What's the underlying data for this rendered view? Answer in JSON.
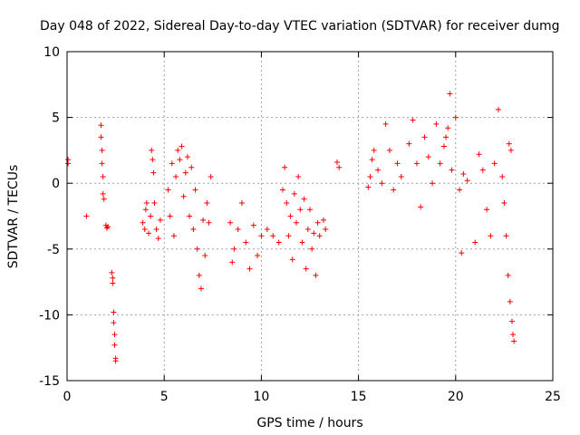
{
  "chart_data": {
    "type": "scatter",
    "title": "Day 048 of 2022, Sidereal Day-to-day VTEC variation (SDTVAR) for receiver dumg",
    "xlabel": "GPS time / hours",
    "ylabel": "SDTVAR / TECUs",
    "xlim": [
      0,
      25
    ],
    "ylim": [
      -15,
      10
    ],
    "xticks": [
      0,
      5,
      10,
      15,
      20,
      25
    ],
    "yticks": [
      -15,
      -10,
      -5,
      0,
      5,
      10
    ],
    "grid": true,
    "marker": "+",
    "color": "#ff0000",
    "series": [
      {
        "name": "SDTVAR",
        "x": [
          0.05,
          0.05,
          1.0,
          1.75,
          1.75,
          1.8,
          1.8,
          1.85,
          1.85,
          1.9,
          2.0,
          2.05,
          2.1,
          2.3,
          2.35,
          2.35,
          2.4,
          2.4,
          2.45,
          2.45,
          2.5,
          2.5,
          3.9,
          4.0,
          4.05,
          4.1,
          4.2,
          4.3,
          4.35,
          4.4,
          4.45,
          4.5,
          4.6,
          4.7,
          4.8,
          5.2,
          5.3,
          5.4,
          5.5,
          5.6,
          5.7,
          5.8,
          5.9,
          6.0,
          6.1,
          6.2,
          6.3,
          6.4,
          6.5,
          6.6,
          6.7,
          6.8,
          6.9,
          7.0,
          7.1,
          7.2,
          7.3,
          7.4,
          8.4,
          8.5,
          8.6,
          8.8,
          9.0,
          9.2,
          9.4,
          9.6,
          9.8,
          10.0,
          10.3,
          10.6,
          10.9,
          11.1,
          11.2,
          11.3,
          11.4,
          11.5,
          11.6,
          11.7,
          11.8,
          11.9,
          12.0,
          12.1,
          12.2,
          12.3,
          12.4,
          12.5,
          12.6,
          12.7,
          12.8,
          12.9,
          13.0,
          13.2,
          13.3,
          13.9,
          14.0,
          15.5,
          15.6,
          15.7,
          15.8,
          16.0,
          16.2,
          16.4,
          16.6,
          16.8,
          17.0,
          17.2,
          17.6,
          17.8,
          18.0,
          18.2,
          18.4,
          18.6,
          18.8,
          19.0,
          19.2,
          19.4,
          19.5,
          19.6,
          19.7,
          19.8,
          20.0,
          20.2,
          20.3,
          20.4,
          20.6,
          21.0,
          21.2,
          21.4,
          21.6,
          21.8,
          22.0,
          22.2,
          22.4,
          22.5,
          22.6,
          22.7,
          22.75,
          22.8,
          22.85,
          22.9,
          22.95,
          23.0
        ],
        "y": [
          1.8,
          1.5,
          -2.5,
          4.4,
          3.5,
          2.5,
          1.5,
          0.5,
          -0.8,
          -1.2,
          -3.2,
          -3.4,
          -3.3,
          -6.8,
          -7.2,
          -7.6,
          -9.8,
          -10.6,
          -11.5,
          -12.3,
          -13.3,
          -13.5,
          -3.0,
          -3.5,
          -2.0,
          -1.5,
          -3.8,
          -2.5,
          2.5,
          1.8,
          0.8,
          -1.5,
          -3.5,
          -4.2,
          -2.8,
          -0.5,
          -2.5,
          1.5,
          -4.0,
          0.5,
          2.5,
          1.8,
          2.8,
          -1.0,
          0.8,
          2.0,
          -2.5,
          1.2,
          -3.5,
          -0.5,
          -5.0,
          -7.0,
          -8.0,
          -2.8,
          -5.5,
          -1.5,
          -3.0,
          0.5,
          -3.0,
          -6.0,
          -5.0,
          -3.5,
          -1.5,
          -4.5,
          -6.5,
          -3.2,
          -5.5,
          -4.0,
          -3.5,
          -4.0,
          -4.5,
          -0.5,
          1.2,
          -1.5,
          -4.0,
          -2.5,
          -5.8,
          -0.8,
          -3.0,
          0.5,
          -2.0,
          -4.5,
          -1.2,
          -6.5,
          -3.5,
          -2.0,
          -5.0,
          -3.8,
          -7.0,
          -3.0,
          -4.0,
          -2.8,
          -3.5,
          1.6,
          1.2,
          -0.3,
          0.5,
          1.8,
          2.5,
          1.0,
          0.0,
          4.5,
          2.5,
          -0.5,
          1.5,
          0.5,
          3.0,
          4.8,
          1.5,
          -1.8,
          3.5,
          2.0,
          0.0,
          4.5,
          1.5,
          2.8,
          3.5,
          4.2,
          6.8,
          1.0,
          5.0,
          -0.5,
          -5.3,
          0.7,
          0.2,
          -4.5,
          2.2,
          1.0,
          -2.0,
          -4.0,
          1.5,
          5.6,
          0.5,
          -1.5,
          -4.0,
          -7.0,
          3.0,
          -9.0,
          2.5,
          -10.5,
          -11.5,
          -12.0
        ]
      }
    ]
  }
}
